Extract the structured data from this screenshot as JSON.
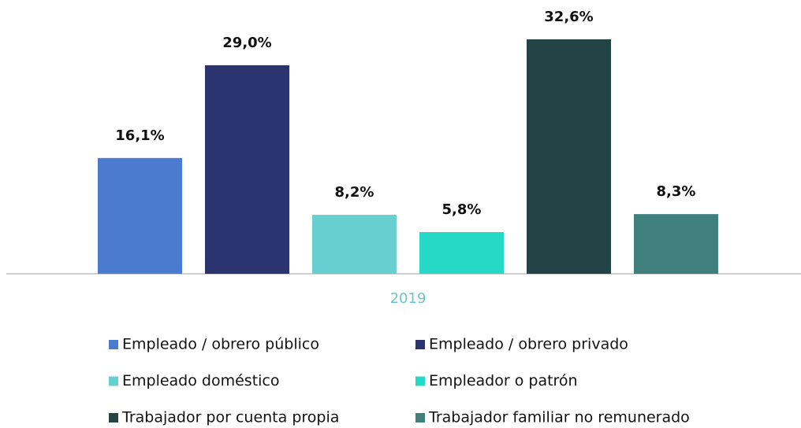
{
  "chart_data": {
    "type": "bar",
    "categories": [
      "2019"
    ],
    "series": [
      {
        "name": "Empleado / obrero público",
        "color": "#4a7bd0",
        "values": [
          16.1
        ],
        "value_labels": [
          "16,1%"
        ]
      },
      {
        "name": "Empleado / obrero privado",
        "color": "#2b346e",
        "values": [
          29.0
        ],
        "value_labels": [
          "29,0%"
        ]
      },
      {
        "name": "Empleado doméstico",
        "color": "#67cfd0",
        "values": [
          8.2
        ],
        "value_labels": [
          "8,2%"
        ]
      },
      {
        "name": "Empleador o patrón",
        "color": "#26d9c6",
        "values": [
          5.8
        ],
        "value_labels": [
          "5,8%"
        ]
      },
      {
        "name": "Trabajador por cuenta propia",
        "color": "#224446",
        "values": [
          32.6
        ],
        "value_labels": [
          "32,6%"
        ]
      },
      {
        "name": "Trabajador familiar no remunerado",
        "color": "#3f807d",
        "values": [
          8.3
        ],
        "value_labels": [
          "8,3%"
        ]
      }
    ]
  }
}
